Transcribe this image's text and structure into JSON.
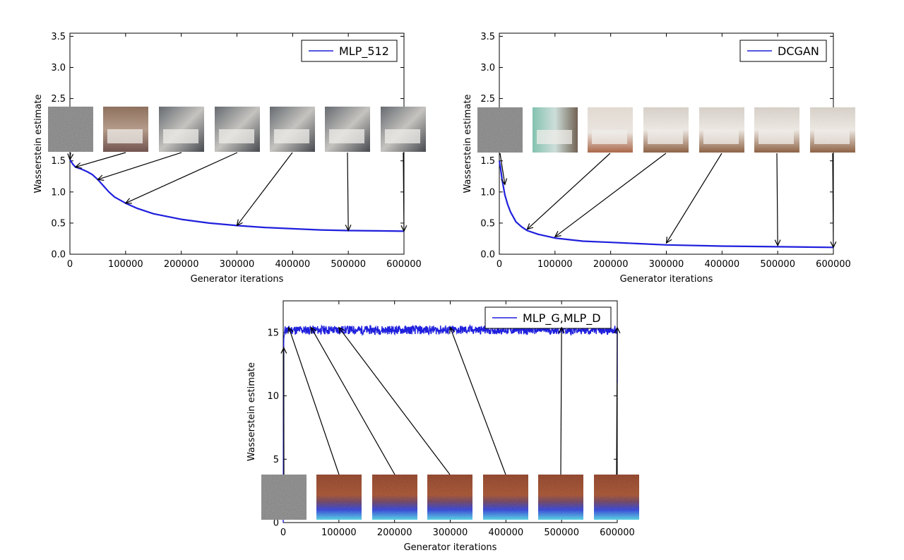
{
  "chart_data": [
    {
      "type": "line",
      "xlabel": "Generator iterations",
      "ylabel": "Wasserstein estimate",
      "xlim": [
        0,
        600000
      ],
      "ylim": [
        0,
        3.55
      ],
      "xticks": [
        0,
        100000,
        200000,
        300000,
        400000,
        500000,
        600000
      ],
      "xtick_labels": [
        "0",
        "100000",
        "200000",
        "300000",
        "400000",
        "500000",
        "600000"
      ],
      "yticks": [
        0.0,
        0.5,
        1.0,
        1.5,
        2.0,
        2.5,
        3.0,
        3.5
      ],
      "ytick_labels": [
        "0.0",
        "0.5",
        "1.0",
        "1.5",
        "2.0",
        "2.5",
        "3.0",
        "3.5"
      ],
      "legend_position": "top-right",
      "series": [
        {
          "name": "MLP_512",
          "color": "#1f1fdd",
          "x": [
            0,
            5000,
            10000,
            20000,
            30000,
            40000,
            50000,
            60000,
            70000,
            80000,
            100000,
            120000,
            150000,
            200000,
            250000,
            300000,
            350000,
            400000,
            450000,
            500000,
            550000,
            600000
          ],
          "y": [
            1.52,
            1.45,
            1.4,
            1.37,
            1.33,
            1.28,
            1.2,
            1.1,
            1.0,
            0.92,
            0.82,
            0.74,
            0.65,
            0.56,
            0.5,
            0.46,
            0.43,
            0.41,
            0.39,
            0.38,
            0.375,
            0.37
          ]
        }
      ],
      "annotations": [
        {
          "sample": "noise",
          "x": 0,
          "y": 1.52
        },
        {
          "sample": "bedroom",
          "x": 10000,
          "y": 1.4
        },
        {
          "sample": "bedroom",
          "x": 50000,
          "y": 1.2
        },
        {
          "sample": "bedroom",
          "x": 100000,
          "y": 0.82
        },
        {
          "sample": "bedroom",
          "x": 300000,
          "y": 0.46
        },
        {
          "sample": "bedroom",
          "x": 500000,
          "y": 0.38
        },
        {
          "sample": "bedroom",
          "x": 600000,
          "y": 0.37
        }
      ]
    },
    {
      "type": "line",
      "xlabel": "Generator iterations",
      "ylabel": "Wasserstein estimate",
      "xlim": [
        0,
        600000
      ],
      "ylim": [
        0,
        3.55
      ],
      "xticks": [
        0,
        100000,
        200000,
        300000,
        400000,
        500000,
        600000
      ],
      "xtick_labels": [
        "0",
        "100000",
        "200000",
        "300000",
        "400000",
        "500000",
        "600000"
      ],
      "yticks": [
        0.0,
        0.5,
        1.0,
        1.5,
        2.0,
        2.5,
        3.0,
        3.5
      ],
      "ytick_labels": [
        "0.0",
        "0.5",
        "1.0",
        "1.5",
        "2.0",
        "2.5",
        "3.0",
        "3.5"
      ],
      "legend_position": "top-right",
      "series": [
        {
          "name": "DCGAN",
          "color": "#1f1fdd",
          "x": [
            0,
            2000,
            5000,
            10000,
            15000,
            20000,
            30000,
            40000,
            50000,
            70000,
            100000,
            150000,
            200000,
            250000,
            300000,
            400000,
            500000,
            600000
          ],
          "y": [
            1.5,
            1.4,
            1.2,
            0.95,
            0.8,
            0.68,
            0.52,
            0.44,
            0.38,
            0.32,
            0.26,
            0.21,
            0.19,
            0.17,
            0.15,
            0.13,
            0.12,
            0.11
          ]
        }
      ],
      "annotations": [
        {
          "sample": "noise",
          "x": 10000,
          "y": 1.12
        },
        {
          "sample": "bedroom",
          "x": 50000,
          "y": 0.4
        },
        {
          "sample": "bedroom",
          "x": 100000,
          "y": 0.28
        },
        {
          "sample": "bedroom",
          "x": 300000,
          "y": 0.18
        },
        {
          "sample": "bedroom",
          "x": 500000,
          "y": 0.14
        },
        {
          "sample": "bedroom",
          "x": 600000,
          "y": 0.11
        }
      ]
    },
    {
      "type": "line",
      "xlabel": "Generator iterations",
      "ylabel": "Wasserstein estimate",
      "xlim": [
        0,
        600000
      ],
      "ylim": [
        0,
        17.5
      ],
      "xticks": [
        0,
        100000,
        200000,
        300000,
        400000,
        500000,
        600000
      ],
      "xtick_labels": [
        "0",
        "100000",
        "200000",
        "300000",
        "400000",
        "500000",
        "600000"
      ],
      "yticks": [
        0,
        5,
        10,
        15
      ],
      "ytick_labels": [
        "0",
        "5",
        "10",
        "15"
      ],
      "legend_position": "top-right",
      "series": [
        {
          "name": "MLP_G,MLP_D",
          "color": "#1f1fdd",
          "x": [
            0,
            1000,
            3000,
            600000,
            602000
          ],
          "y": [
            0,
            14.5,
            15.2,
            15.2,
            11.0
          ],
          "noise_amplitude": 0.35
        }
      ],
      "annotations": [
        {
          "sample": "noise",
          "x": 1000,
          "y": 13.8
        },
        {
          "sample": "texture",
          "x": 10000,
          "y": 15.4
        },
        {
          "sample": "texture",
          "x": 50000,
          "y": 15.4
        },
        {
          "sample": "texture",
          "x": 100000,
          "y": 15.4
        },
        {
          "sample": "texture",
          "x": 300000,
          "y": 15.4
        },
        {
          "sample": "texture",
          "x": 500000,
          "y": 15.4
        },
        {
          "sample": "texture",
          "x": 600000,
          "y": 15.4
        }
      ]
    }
  ]
}
